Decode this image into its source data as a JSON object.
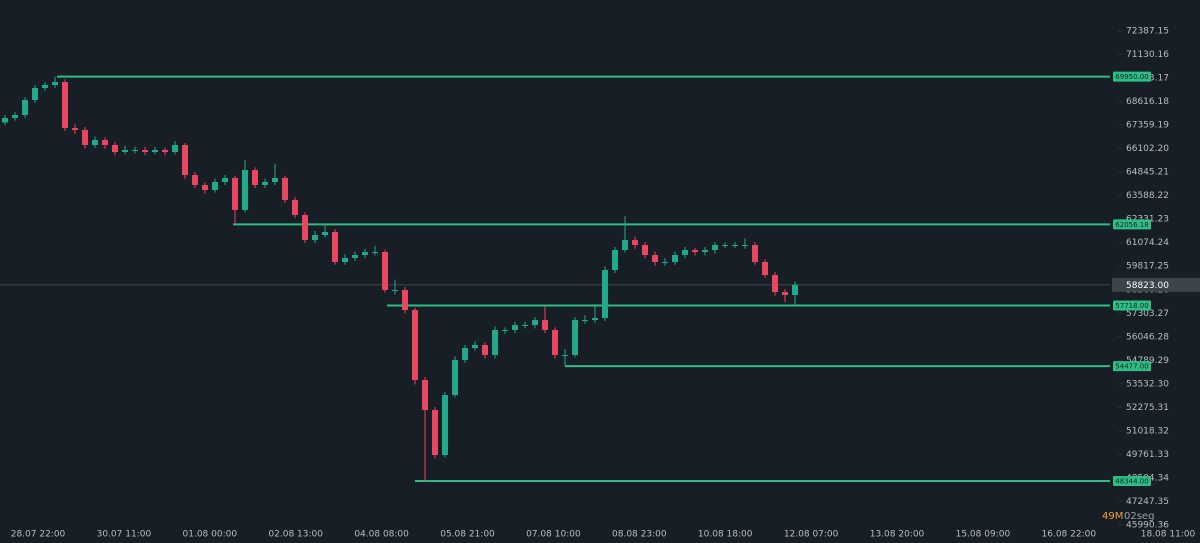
{
  "chart_data": {
    "type": "candlestick",
    "ylim": [
      45028,
      74044
    ],
    "yticks": [
      {
        "value": 72387.15,
        "label": "72387.15"
      },
      {
        "value": 71130.16,
        "label": "71130.16"
      },
      {
        "value": 69873.17,
        "label": "69873.17"
      },
      {
        "value": 68616.18,
        "label": "68616.18"
      },
      {
        "value": 67359.19,
        "label": "67359.19"
      },
      {
        "value": 66102.2,
        "label": "66102.20"
      },
      {
        "value": 64845.21,
        "label": "64845.21"
      },
      {
        "value": 63588.22,
        "label": "63588.22"
      },
      {
        "value": 62331.23,
        "label": "62331.23"
      },
      {
        "value": 61074.24,
        "label": "61074.24"
      },
      {
        "value": 59817.25,
        "label": "59817.25"
      },
      {
        "value": 58560.26,
        "label": "58560.26"
      },
      {
        "value": 57303.27,
        "label": "57303.27"
      },
      {
        "value": 56046.28,
        "label": "56046.28"
      },
      {
        "value": 54789.29,
        "label": "54789.29"
      },
      {
        "value": 53532.3,
        "label": "53532.30"
      },
      {
        "value": 52275.31,
        "label": "52275.31"
      },
      {
        "value": 51018.32,
        "label": "51018.32"
      },
      {
        "value": 49761.33,
        "label": "49761.33"
      },
      {
        "value": 48504.34,
        "label": "48504.34"
      },
      {
        "value": 47247.35,
        "label": "47247.35"
      },
      {
        "value": 45990.36,
        "label": "45990.36"
      }
    ],
    "x_labels": [
      "28.07 22:00",
      "30.07 11:00",
      "01.08 00:00",
      "02.08 13:00",
      "04.08 08:00",
      "05.08 21:00",
      "07.08 10:00",
      "08.08 23:00",
      "10.08 18:00",
      "12.08 07:00",
      "13.08 20:00",
      "15.08 09:00",
      "16.08 22:00",
      "18.08 11:00"
    ],
    "up_color": "#22a98c",
    "down_color": "#e8475f",
    "level_color": "#2ebd85",
    "levels": [
      {
        "value": 69950,
        "label": "69950.00"
      },
      {
        "value": 62056.18,
        "label": "62056.18"
      },
      {
        "value": 57718,
        "label": "57718.00"
      },
      {
        "value": 54477,
        "label": "54477.00"
      },
      {
        "value": 48344,
        "label": "48344.00"
      }
    ],
    "current_price": {
      "value": 58823,
      "label": "58823.00"
    },
    "countdown": [
      "49M",
      "02seg"
    ],
    "open": [
      67500,
      67738,
      67898,
      68700,
      69341,
      69502,
      69662,
      67204,
      67097,
      66295,
      66562,
      66295,
      65921,
      66028,
      66028,
      65921,
      66028,
      65921,
      66295,
      64692,
      64158,
      63890,
      64318,
      64532,
      62822,
      64959,
      64158,
      64318,
      64532,
      63356,
      62554,
      61218,
      61486,
      61646,
      60043,
      60256,
      60417,
      60577,
      60577,
      58546,
      58546,
      57478,
      53737,
      52134,
      49729,
      52935,
      54806,
      55447,
      55607,
      55073,
      56409,
      56409,
      56676,
      56676,
      56943,
      56409,
      55073,
      55073,
      56943,
      56943,
      57050,
      59615,
      60684,
      61218,
      60951,
      60417,
      60043,
      60043,
      60417,
      60684,
      60577,
      60684,
      60951,
      60951,
      60951,
      60951,
      60043,
      59348,
      58440,
      58279
    ],
    "high": [
      67900,
      68050,
      68850,
      69500,
      69650,
      69950,
      69800,
      67400,
      67250,
      66750,
      66700,
      66450,
      66250,
      66200,
      66200,
      66200,
      66150,
      66500,
      66400,
      64850,
      64300,
      64500,
      64700,
      64650,
      65494,
      65100,
      64500,
      65300,
      64650,
      63500,
      62700,
      61700,
      62100,
      61800,
      60450,
      60600,
      60750,
      60900,
      60700,
      59100,
      58700,
      57600,
      53900,
      52300,
      53100,
      55000,
      55600,
      55800,
      55750,
      56600,
      56550,
      56850,
      56850,
      57100,
      57700,
      56550,
      55400,
      57100,
      57200,
      57800,
      59800,
      60850,
      62500,
      61400,
      61100,
      60600,
      60250,
      60600,
      60850,
      60800,
      60850,
      61100,
      61100,
      61100,
      61300,
      61100,
      60200,
      59500,
      58600,
      59000
    ],
    "low": [
      67350,
      67600,
      67750,
      68550,
      69200,
      69350,
      67050,
      66900,
      66100,
      66150,
      66100,
      65750,
      65800,
      65850,
      65750,
      65800,
      65750,
      65800,
      64500,
      64000,
      63700,
      63750,
      64150,
      62056,
      62700,
      64000,
      64000,
      64150,
      63200,
      62400,
      61050,
      61050,
      61350,
      59900,
      59900,
      60100,
      60250,
      60400,
      58400,
      58300,
      57300,
      53500,
      48344,
      49550,
      49600,
      52800,
      54650,
      55300,
      54900,
      54900,
      56200,
      56250,
      56500,
      56500,
      56250,
      54900,
      54477,
      54950,
      56750,
      56800,
      56900,
      59450,
      60550,
      60750,
      60250,
      59850,
      59850,
      59900,
      60250,
      60400,
      60400,
      60500,
      60800,
      60800,
      60750,
      59900,
      59200,
      58250,
      57900,
      57718
    ],
    "close": [
      67738,
      67898,
      68700,
      69341,
      69502,
      69662,
      67204,
      67097,
      66295,
      66562,
      66295,
      65921,
      66028,
      66028,
      65921,
      66028,
      65921,
      66295,
      64692,
      64158,
      63890,
      64318,
      64532,
      62822,
      64959,
      64158,
      64318,
      64532,
      63356,
      62554,
      61218,
      61486,
      61646,
      60043,
      60256,
      60417,
      60577,
      60577,
      58546,
      58546,
      57478,
      53737,
      52134,
      49729,
      52935,
      54806,
      55447,
      55607,
      55073,
      56409,
      56409,
      56676,
      56676,
      56943,
      56409,
      55073,
      55073,
      56943,
      56943,
      57050,
      59615,
      60684,
      61218,
      60951,
      60417,
      60043,
      60043,
      60417,
      60684,
      60577,
      60684,
      60951,
      60951,
      60951,
      60951,
      60043,
      59348,
      58440,
      58279,
      58823
    ]
  }
}
